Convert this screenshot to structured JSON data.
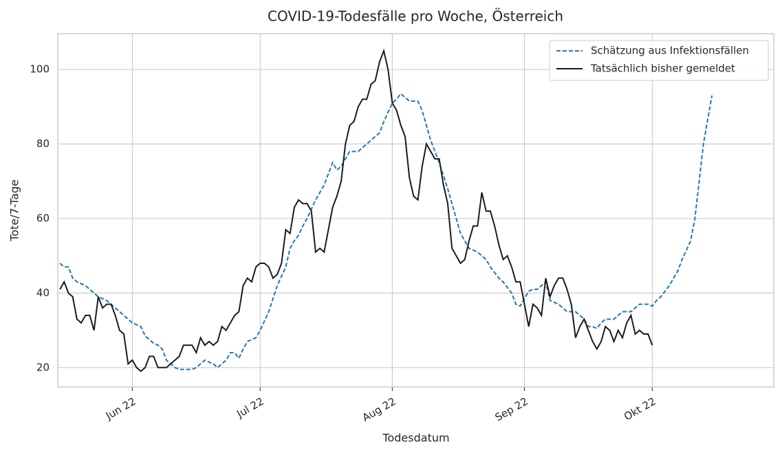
{
  "chart_data": {
    "type": "line",
    "title": "COVID-19-Todesfälle pro Woche, Österreich",
    "xlabel": "Todesdatum",
    "ylabel": "Tote/7-Tage",
    "x": [
      135,
      136,
      137,
      138,
      139,
      140,
      141,
      142,
      143,
      144,
      145,
      146,
      147,
      148,
      149,
      150,
      151,
      152,
      153,
      154,
      155,
      156,
      157,
      158,
      159,
      160,
      161,
      162,
      163,
      164,
      165,
      166,
      167,
      168,
      169,
      170,
      171,
      172,
      173,
      174,
      175,
      176,
      177,
      178,
      179,
      180,
      181,
      182,
      183,
      184,
      185,
      186,
      187,
      188,
      189,
      190,
      191,
      192,
      193,
      194,
      195,
      196,
      197,
      198,
      199,
      200,
      201,
      202,
      203,
      204,
      205,
      206,
      207,
      208,
      209,
      210,
      211,
      212,
      213,
      214,
      215,
      216,
      217,
      218,
      219,
      220,
      221,
      222,
      223,
      224,
      225,
      226,
      227,
      228,
      229,
      230,
      231,
      232,
      233,
      234,
      235,
      236,
      237,
      238,
      239,
      240,
      241,
      242,
      243,
      244,
      245,
      246,
      247,
      248,
      249,
      250,
      251,
      252,
      253,
      254,
      255,
      256,
      257,
      258,
      259,
      260,
      261,
      262,
      263,
      264,
      265,
      266,
      267,
      268,
      269,
      270,
      271,
      272,
      273,
      274,
      275,
      276,
      277,
      278,
      279,
      280,
      281,
      282,
      283,
      284,
      285,
      286,
      287,
      288
    ],
    "xlim": [
      134.5,
      302.5
    ],
    "xticks": [
      {
        "value": 152,
        "label": "Jun 22"
      },
      {
        "value": 182,
        "label": "Jul 22"
      },
      {
        "value": 213,
        "label": "Aug 22"
      },
      {
        "value": 244,
        "label": "Sep 22"
      },
      {
        "value": 274,
        "label": "Okt 22"
      }
    ],
    "ylim": [
      14.8,
      109.6
    ],
    "yticks": [
      20,
      40,
      60,
      80,
      100
    ],
    "grid": true,
    "legend": "upper right",
    "series": [
      {
        "name": "Schätzung aus Infektionsfällen",
        "color": "#1f77b4",
        "style": "dashed",
        "values": [
          48,
          47,
          47,
          44,
          43,
          42.5,
          42,
          41,
          40,
          39,
          38.5,
          38,
          37,
          36,
          35,
          34,
          33,
          32,
          31.5,
          31,
          28.5,
          27.5,
          26.5,
          26,
          25,
          22,
          21,
          20,
          19.5,
          19.5,
          19.5,
          19.5,
          20,
          21,
          22,
          21.5,
          21,
          20,
          21,
          22,
          24,
          24,
          22.5,
          25,
          27,
          27.5,
          28,
          30,
          32.5,
          35,
          38.5,
          42,
          44.5,
          47,
          52,
          54,
          55.5,
          58,
          60,
          62.5,
          65,
          67,
          69,
          72,
          75,
          73,
          74,
          76,
          78,
          78,
          78,
          79,
          80,
          81,
          82,
          83,
          86,
          88.5,
          91,
          92,
          93.5,
          92.5,
          91.5,
          91.5,
          91.5,
          89,
          85,
          81,
          78,
          75,
          71.5,
          68,
          64,
          60,
          56,
          54,
          52,
          51.5,
          51,
          50,
          49,
          47,
          45.5,
          44,
          43,
          41.5,
          40,
          37,
          36.5,
          38.5,
          40.5,
          41,
          41,
          42,
          43,
          38,
          37.5,
          37,
          36,
          35,
          35,
          35,
          34,
          33,
          31,
          31,
          30.5,
          32,
          33,
          33,
          33,
          34,
          35,
          35,
          35,
          36,
          37,
          37,
          37,
          36.5,
          38,
          39,
          40.5,
          42,
          44,
          46,
          49,
          51.5,
          54,
          60,
          70,
          80,
          86.5,
          93
        ]
      },
      {
        "name": "Tatsächlich bisher gemeldet",
        "color": "#1a1a1a",
        "style": "solid",
        "values": [
          41,
          43,
          40,
          39,
          33,
          32,
          34,
          34,
          30,
          39,
          36,
          37,
          37,
          34,
          30,
          29,
          21,
          22,
          20,
          19,
          20,
          23,
          23,
          20,
          20,
          20,
          21,
          22,
          23,
          26,
          26,
          26,
          24,
          28,
          26,
          27,
          26,
          27,
          31,
          30,
          32,
          34,
          35,
          42,
          44,
          43,
          47,
          48,
          48,
          47,
          44,
          45,
          48,
          57,
          56,
          63,
          65,
          64,
          64,
          62,
          51,
          52,
          51,
          57,
          63,
          66,
          70,
          80,
          85,
          86,
          90,
          92,
          92,
          96,
          97,
          102,
          105,
          100,
          91,
          89,
          85,
          82,
          71,
          66,
          65,
          74,
          80,
          78,
          76,
          76,
          69,
          64,
          52,
          50,
          48,
          49,
          54,
          58,
          58,
          67,
          62,
          62,
          58,
          53,
          49,
          50,
          47,
          43,
          43,
          37,
          31,
          37,
          36,
          34,
          44,
          39,
          42,
          44,
          44,
          41,
          37,
          28,
          31,
          33,
          30,
          27,
          25,
          27,
          31,
          30,
          27,
          30,
          28,
          32,
          34,
          29,
          30,
          29,
          29,
          26,
          null,
          null,
          null,
          null,
          null,
          null,
          null,
          null,
          null,
          null,
          null,
          null,
          null,
          null
        ]
      }
    ]
  }
}
